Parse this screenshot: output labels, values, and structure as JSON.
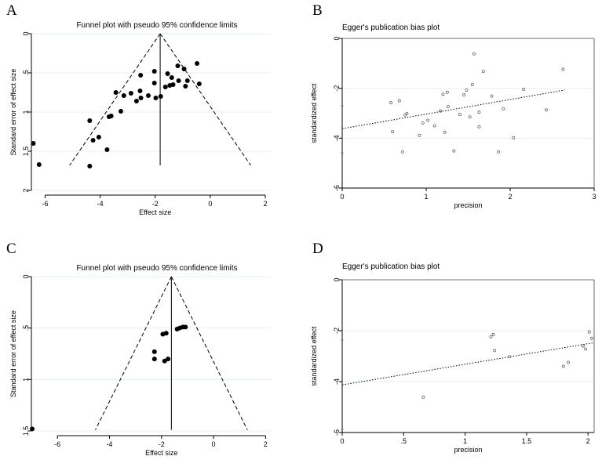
{
  "panels": [
    {
      "id": "A",
      "label": "A",
      "chart_data": {
        "type": "scatter",
        "title": "Funnel plot with pseudo 95% confidence limits",
        "xlabel": "Effect size",
        "ylabel": "Standard error of effect size",
        "xlim": [
          -6.5,
          2.2
        ],
        "ylim": [
          0,
          2.0
        ],
        "y_reversed": true,
        "grid": "horizontal",
        "xticks": [
          -6,
          -4,
          -2,
          0,
          2
        ],
        "xtick_labels": [
          "-6",
          "-4",
          "-2",
          "0",
          "2"
        ],
        "yticks": [
          0,
          0.5,
          1,
          1.5,
          2
        ],
        "ytick_labels": [
          "0",
          ".5",
          "1",
          "1.5",
          "2"
        ],
        "pooled_effect": -1.82,
        "max_se": 1.68,
        "points": [
          [
            -6.43,
            1.4
          ],
          [
            -6.22,
            1.67
          ],
          [
            -4.38,
            1.11
          ],
          [
            -4.38,
            1.69
          ],
          [
            -4.26,
            1.36
          ],
          [
            -4.05,
            1.32
          ],
          [
            -3.75,
            1.48
          ],
          [
            -3.68,
            1.06
          ],
          [
            -3.6,
            1.05
          ],
          [
            -3.43,
            0.75
          ],
          [
            -3.25,
            0.99
          ],
          [
            -3.14,
            0.79
          ],
          [
            -2.88,
            0.76
          ],
          [
            -2.68,
            0.86
          ],
          [
            -2.55,
            0.73
          ],
          [
            -2.52,
            0.82
          ],
          [
            -2.53,
            0.53
          ],
          [
            -2.25,
            0.79
          ],
          [
            -2.03,
            0.63
          ],
          [
            -2.03,
            0.48
          ],
          [
            -1.98,
            0.82
          ],
          [
            -1.8,
            0.8
          ],
          [
            -1.63,
            0.68
          ],
          [
            -1.55,
            0.51
          ],
          [
            -1.47,
            0.66
          ],
          [
            -1.4,
            0.56
          ],
          [
            -1.35,
            0.65
          ],
          [
            -1.18,
            0.41
          ],
          [
            -1.15,
            0.6
          ],
          [
            -0.95,
            0.45
          ],
          [
            -0.9,
            0.67
          ],
          [
            -0.83,
            0.6
          ],
          [
            -0.48,
            0.38
          ],
          [
            -0.4,
            0.64
          ]
        ]
      }
    },
    {
      "id": "B",
      "label": "B",
      "chart_data": {
        "type": "scatter",
        "title": "Egger's publication bias plot",
        "xlabel": "precision",
        "ylabel": "standardized effect",
        "xlim": [
          0,
          3
        ],
        "ylim": [
          -6,
          0
        ],
        "grid": "horizontal",
        "xticks": [
          0,
          1,
          2,
          3
        ],
        "xtick_labels": [
          "0",
          "1",
          "2",
          "3"
        ],
        "yticks": [
          -6,
          -4,
          -2,
          0
        ],
        "ytick_labels": [
          "-6",
          "-4",
          "-2",
          "0"
        ],
        "intercept_marks": [
          -4.59,
          -2.7
        ],
        "fit_line": [
          [
            0,
            -3.62
          ],
          [
            2.65,
            -2.07
          ]
        ],
        "points": [
          [
            0.58,
            -2.58
          ],
          [
            0.6,
            -3.74
          ],
          [
            0.68,
            -2.5
          ],
          [
            0.72,
            -4.55
          ],
          [
            0.75,
            -3.07
          ],
          [
            0.77,
            -3.02
          ],
          [
            0.92,
            -3.89
          ],
          [
            0.96,
            -3.39
          ],
          [
            1.02,
            -3.28
          ],
          [
            1.1,
            -3.5
          ],
          [
            1.17,
            -2.91
          ],
          [
            1.2,
            -2.24
          ],
          [
            1.25,
            -2.16
          ],
          [
            1.26,
            -2.73
          ],
          [
            1.22,
            -3.76
          ],
          [
            1.33,
            -4.51
          ],
          [
            1.4,
            -3.05
          ],
          [
            1.45,
            -2.26
          ],
          [
            1.48,
            -2.07
          ],
          [
            1.52,
            -3.15
          ],
          [
            1.55,
            -1.85
          ],
          [
            1.57,
            -0.62
          ],
          [
            1.63,
            -2.96
          ],
          [
            1.63,
            -3.54
          ],
          [
            1.68,
            -1.32
          ],
          [
            1.78,
            -2.31
          ],
          [
            1.86,
            -4.55
          ],
          [
            1.92,
            -2.82
          ],
          [
            2.04,
            -3.98
          ],
          [
            2.16,
            -2.04
          ],
          [
            2.43,
            -2.87
          ],
          [
            2.63,
            -1.24
          ]
        ]
      }
    },
    {
      "id": "C",
      "label": "C",
      "chart_data": {
        "type": "scatter",
        "title": "Funnel plot with pseudo 95% confidence limits",
        "xlabel": "Effect size",
        "ylabel": "Standard error of effect size",
        "xlim": [
          -7.0,
          2.2
        ],
        "ylim": [
          0,
          1.5
        ],
        "y_reversed": true,
        "grid": "horizontal",
        "xticks": [
          -6,
          -4,
          -2,
          0,
          2
        ],
        "xtick_labels": [
          "-6",
          "-4",
          "-2",
          "0",
          "2"
        ],
        "yticks": [
          0,
          0.5,
          1,
          1.5
        ],
        "ytick_labels": [
          "0",
          ".5",
          "1",
          "1.5"
        ],
        "pooled_effect": -1.62,
        "max_se": 1.49,
        "points": [
          [
            -6.97,
            1.48
          ],
          [
            -2.27,
            0.73
          ],
          [
            -2.27,
            0.8
          ],
          [
            -1.95,
            0.56
          ],
          [
            -1.88,
            0.82
          ],
          [
            -1.82,
            0.55
          ],
          [
            -1.75,
            0.8
          ],
          [
            -1.4,
            0.51
          ],
          [
            -1.3,
            0.5
          ],
          [
            -1.18,
            0.49
          ],
          [
            -1.08,
            0.49
          ]
        ]
      }
    },
    {
      "id": "D",
      "label": "D",
      "chart_data": {
        "type": "scatter",
        "title": "Egger's publication bias plot",
        "xlabel": "precision",
        "ylabel": "standardized effect",
        "xlim": [
          0,
          2.05
        ],
        "ylim": [
          -6,
          0
        ],
        "grid": "horizontal",
        "xticks": [
          0,
          0.5,
          1,
          1.5,
          2
        ],
        "xtick_labels": [
          "0",
          ".5",
          "1",
          "1.5",
          "2"
        ],
        "yticks": [
          -6,
          -4,
          -2,
          0
        ],
        "ytick_labels": [
          "-6",
          "-4",
          "-2",
          "0"
        ],
        "intercept_marks": [
          -5.87,
          -2.37
        ],
        "fit_line": [
          [
            0,
            -4.13
          ],
          [
            2.05,
            -2.47
          ]
        ],
        "points": [
          [
            0.66,
            -4.61
          ],
          [
            1.21,
            -2.24
          ],
          [
            1.23,
            -2.15
          ],
          [
            1.24,
            -2.78
          ],
          [
            1.36,
            -3.02
          ],
          [
            1.8,
            -3.4
          ],
          [
            1.84,
            -3.25
          ],
          [
            1.96,
            -2.6
          ],
          [
            1.98,
            -2.72
          ],
          [
            2.01,
            -2.05
          ],
          [
            2.03,
            -2.3
          ]
        ]
      }
    }
  ]
}
